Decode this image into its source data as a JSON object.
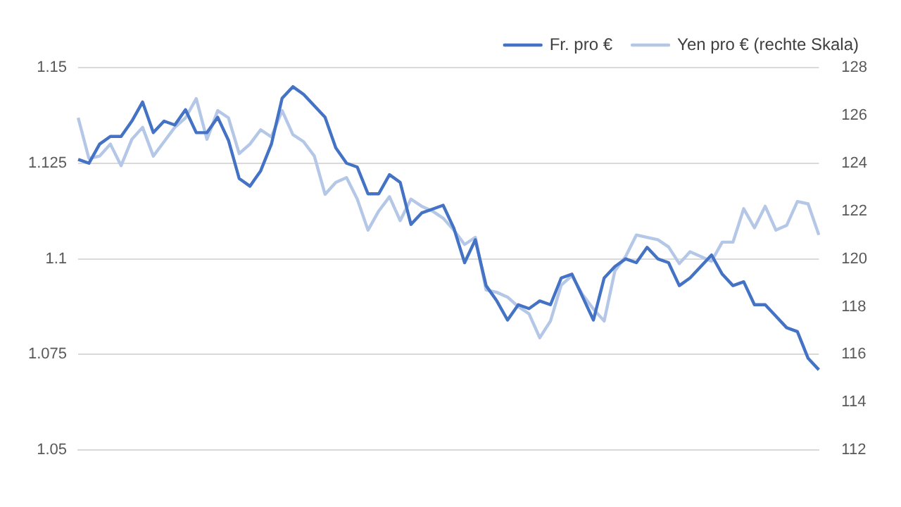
{
  "chart_data": {
    "type": "line",
    "categories": [
      null,
      null,
      null,
      null,
      null,
      null,
      null,
      null,
      null,
      null,
      null,
      null,
      null,
      null,
      null,
      null,
      null,
      null,
      null,
      null,
      null,
      null,
      null,
      null,
      null,
      null,
      null,
      null,
      null,
      null,
      null,
      null,
      null,
      null,
      null,
      null,
      null,
      null,
      null,
      null,
      null,
      null,
      null,
      null,
      null,
      null,
      null,
      null,
      null,
      null,
      null,
      null,
      null,
      null,
      null,
      null,
      null,
      null,
      null,
      null,
      null,
      null,
      null,
      null,
      null,
      null,
      null,
      null,
      null,
      null
    ],
    "series": [
      {
        "name": "Fr. pro €",
        "color": "#4472c4",
        "values": [
          1.126,
          1.125,
          1.13,
          1.132,
          1.132,
          1.136,
          1.141,
          1.133,
          1.136,
          1.135,
          1.139,
          1.133,
          1.133,
          1.137,
          1.131,
          1.121,
          1.119,
          1.123,
          1.13,
          1.142,
          1.145,
          1.143,
          1.14,
          1.137,
          1.129,
          1.125,
          1.124,
          1.117,
          1.117,
          1.122,
          1.12,
          1.109,
          1.112,
          1.113,
          1.114,
          1.108,
          1.099,
          1.105,
          1.093,
          1.089,
          1.084,
          1.088,
          1.087,
          1.089,
          1.088,
          1.095,
          1.096,
          1.09,
          1.084,
          1.095,
          1.098,
          1.1,
          1.099,
          1.103,
          1.1,
          1.099,
          1.093,
          1.095,
          1.098,
          1.101,
          1.096,
          1.093,
          1.094,
          1.088,
          1.088,
          1.085,
          1.082,
          1.081,
          1.074,
          1.071
        ]
      },
      {
        "name": "Yen pro € (rechte Skala)",
        "color": "#b4c7e7",
        "axis": "y2",
        "values": [
          125.9,
          124.2,
          124.3,
          124.8,
          123.9,
          125.0,
          125.5,
          124.3,
          124.9,
          125.5,
          125.9,
          126.7,
          125.0,
          126.2,
          125.9,
          124.4,
          124.8,
          125.4,
          125.1,
          126.2,
          125.2,
          124.9,
          124.3,
          122.7,
          123.2,
          123.4,
          122.5,
          121.2,
          122.0,
          122.6,
          121.6,
          122.5,
          122.2,
          122.0,
          121.7,
          121.2,
          120.6,
          120.9,
          118.7,
          118.6,
          118.4,
          118.0,
          117.7,
          116.7,
          117.4,
          118.9,
          119.3,
          118.5,
          117.9,
          117.4,
          119.5,
          120.1,
          121.0,
          120.9,
          120.8,
          120.5,
          119.8,
          120.3,
          120.1,
          119.9,
          120.7,
          120.7,
          122.1,
          121.3,
          122.2,
          121.2,
          121.4,
          122.4,
          122.3,
          121.0
        ]
      }
    ],
    "ylim": [
      1.05,
      1.15
    ],
    "yticks": [
      1.05,
      1.075,
      1.1,
      1.125,
      1.15
    ],
    "y2lim": [
      112,
      128
    ],
    "y2ticks": [
      112,
      114,
      116,
      118,
      120,
      122,
      124,
      126,
      128
    ],
    "grid": "y",
    "legend": "top right",
    "marker": "none",
    "line_style": "solid"
  }
}
